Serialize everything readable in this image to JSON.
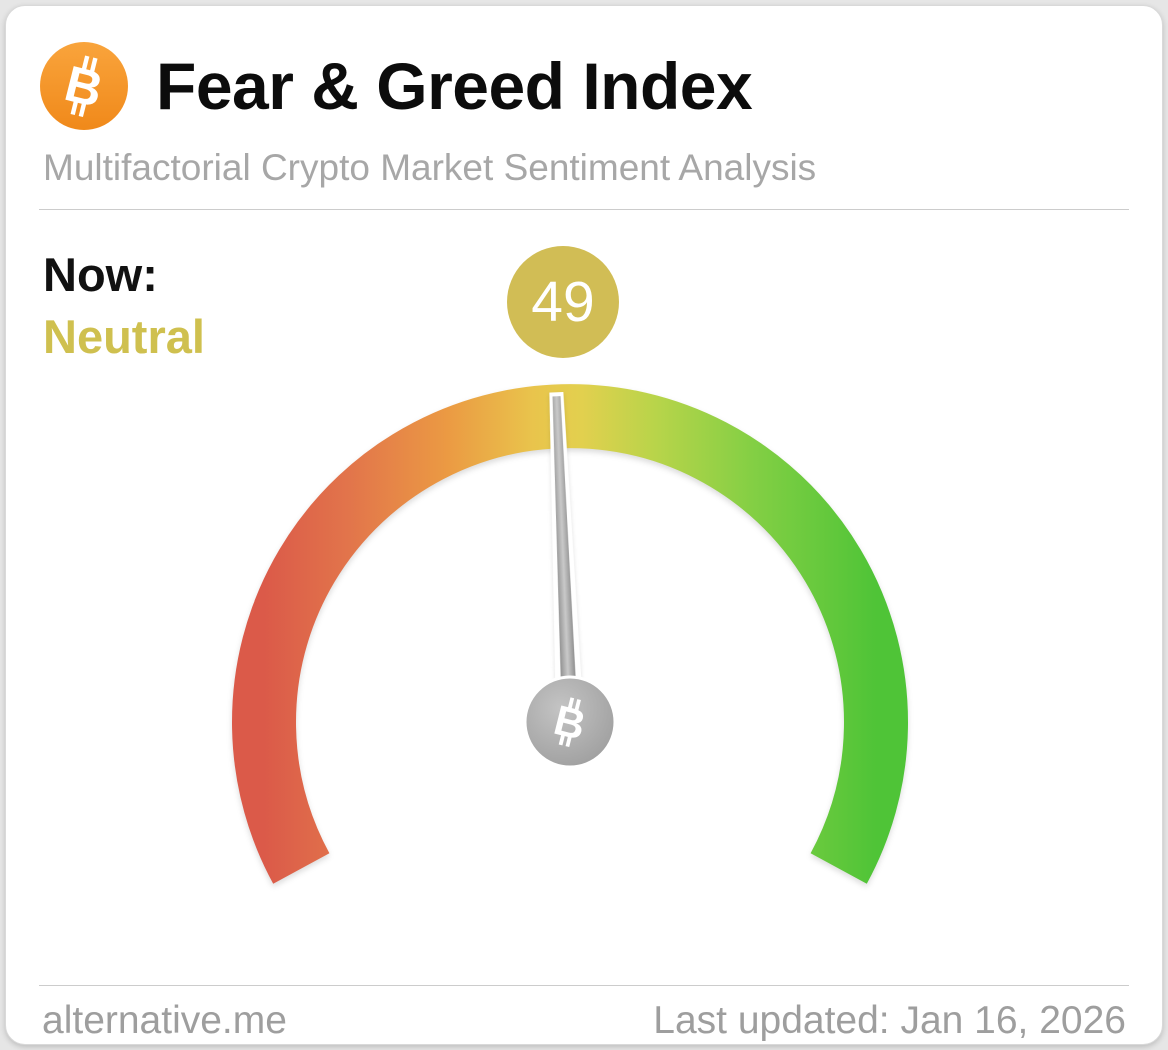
{
  "header": {
    "title": "Fear & Greed Index",
    "subtitle": "Multifactorial Crypto Market Sentiment Analysis",
    "icon": "bitcoin-icon"
  },
  "now": {
    "label": "Now:"
  },
  "footer": {
    "source": "alternative.me",
    "last_updated": "Last updated: Jan 16, 2026"
  },
  "colors": {
    "bitcoin_orange_light": "#f9a43c",
    "bitcoin_orange_dark": "#f0891a",
    "classification_gold": "#cfc04f",
    "badge_gold": "#d1bd55",
    "muted_text": "#9e9e9e",
    "divider": "#cccccc",
    "needle_gray": "#9a9a9a",
    "gauge_gradient": [
      "#db5a49",
      "#e2754b",
      "#eb9a43",
      "#e9c44c",
      "#e2d04e",
      "#b8d44a",
      "#83cf44",
      "#4fc437"
    ]
  },
  "chart_data": {
    "type": "gauge",
    "title": "Fear & Greed Index",
    "subtitle": "Multifactorial Crypto Market Sentiment Analysis",
    "value": 49,
    "min": 0,
    "max": 100,
    "classification": "Neutral",
    "gauge_color_scale": "red-orange at 0 (left) through yellow at 50 (top) to green at 100 (right)",
    "last_updated": "Jan 16, 2026",
    "source": "alternative.me"
  }
}
